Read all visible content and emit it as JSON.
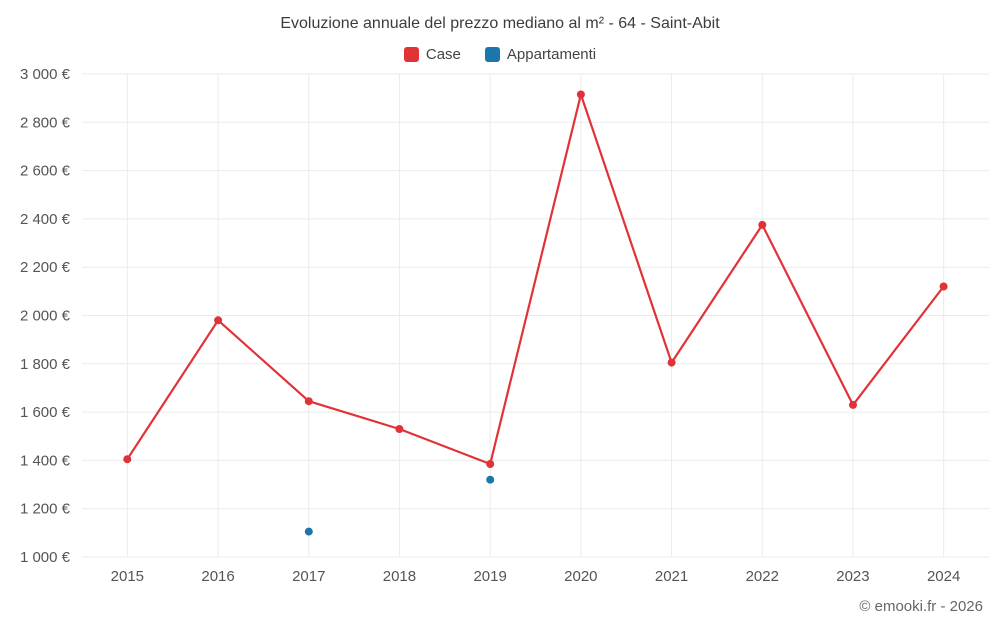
{
  "title": "Evoluzione annuale del prezzo mediano al m² - 64 - Saint-Abit",
  "footer": "© emooki.fr - 2026",
  "chart_data": {
    "type": "line",
    "title": "Evoluzione annuale del prezzo mediano al m² - 64 - Saint-Abit",
    "xlabel": "",
    "ylabel": "",
    "categories": [
      "2015",
      "2016",
      "2017",
      "2018",
      "2019",
      "2020",
      "2021",
      "2022",
      "2023",
      "2024"
    ],
    "series": [
      {
        "name": "Case",
        "color": "#e13238",
        "values": [
          1405,
          1980,
          1645,
          1530,
          1385,
          2915,
          1805,
          2375,
          1630,
          2120
        ]
      },
      {
        "name": "Appartamenti",
        "color": "#1b76ac",
        "values": [
          null,
          null,
          1105,
          null,
          1320,
          null,
          null,
          null,
          null,
          null
        ]
      }
    ],
    "ylim": [
      1000,
      3000
    ],
    "yticks": [
      1000,
      1200,
      1400,
      1600,
      1800,
      2000,
      2200,
      2400,
      2600,
      2800,
      3000
    ],
    "ytick_labels": [
      "1 000 €",
      "1 200 €",
      "1 400 €",
      "1 600 €",
      "1 800 €",
      "2 000 €",
      "2 200 €",
      "2 400 €",
      "2 600 €",
      "2 800 €",
      "3 000 €"
    ],
    "grid": true,
    "grid_color": "#ebebeb",
    "legend_position": "top"
  }
}
